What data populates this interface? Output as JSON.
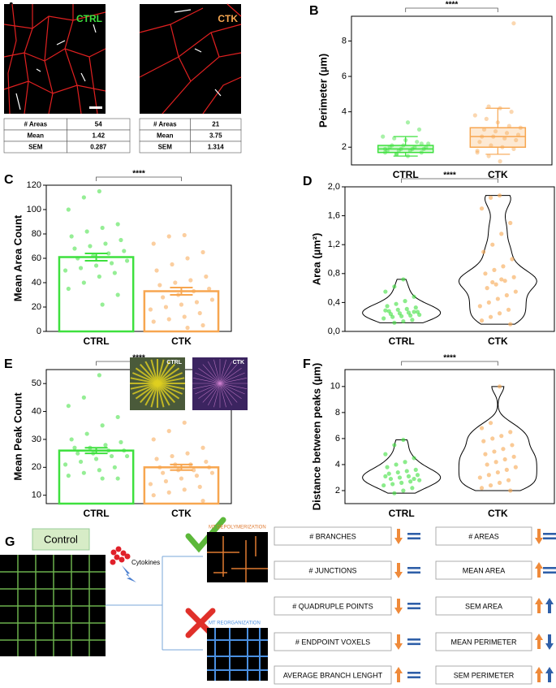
{
  "panel_a": {
    "label": "A",
    "images": [
      {
        "label": "CTRL",
        "table": [
          [
            "# Areas",
            "54"
          ],
          [
            "Mean",
            "1.42"
          ],
          [
            "SEM",
            "0.287"
          ]
        ]
      },
      {
        "label": "CTK",
        "table": [
          [
            "# Areas",
            "21"
          ],
          [
            "Mean",
            "3.75"
          ],
          [
            "SEM",
            "1.314"
          ]
        ]
      }
    ]
  },
  "chart_data": [
    {
      "type": "box",
      "panel": "B",
      "ylabel": "Perimeter (µm)",
      "annotation": "****",
      "categories": [
        "CTRL",
        "CTK"
      ],
      "colors": [
        "#3ee03e",
        "#f7a650"
      ],
      "boxes": [
        {
          "min": 1.5,
          "q1": 1.7,
          "median": 1.9,
          "q3": 2.1,
          "max": 2.6
        },
        {
          "min": 1.6,
          "q1": 2.0,
          "median": 2.6,
          "q3": 3.1,
          "max": 4.2
        }
      ],
      "points": [
        [
          1.5,
          1.6,
          1.7,
          1.7,
          1.8,
          1.8,
          1.8,
          1.9,
          1.9,
          1.9,
          2.0,
          2.0,
          2.0,
          2.1,
          2.1,
          2.2,
          2.3,
          2.4,
          2.5,
          2.6,
          3.0,
          3.4,
          1.6,
          1.9,
          2.2
        ],
        [
          1.2,
          1.5,
          1.7,
          1.9,
          2.0,
          2.1,
          2.3,
          2.4,
          2.5,
          2.6,
          2.6,
          2.7,
          2.8,
          2.9,
          3.0,
          3.1,
          3.2,
          3.4,
          3.6,
          3.8,
          4.0,
          4.2,
          4.3,
          1.8,
          9.0
        ]
      ],
      "ylim": [
        1,
        9.4
      ],
      "yticks": [
        2,
        4,
        6,
        8
      ]
    },
    {
      "type": "bar",
      "panel": "C",
      "ylabel": "Mean Area Count",
      "annotation": "****",
      "categories": [
        "CTRL",
        "CTK"
      ],
      "colors": [
        "#3ee03e",
        "#f7a650"
      ],
      "values": [
        61,
        33
      ],
      "errors": [
        3,
        3
      ],
      "points": [
        [
          115,
          110,
          100,
          88,
          85,
          82,
          78,
          75,
          72,
          70,
          68,
          66,
          64,
          62,
          60,
          58,
          56,
          54,
          52,
          50,
          48,
          45,
          40,
          35,
          30,
          22
        ],
        [
          79,
          78,
          72,
          65,
          60,
          55,
          50,
          45,
          42,
          40,
          38,
          35,
          33,
          30,
          28,
          26,
          24,
          22,
          20,
          18,
          15,
          12,
          10,
          8,
          5,
          3
        ]
      ],
      "ylim": [
        0,
        120
      ],
      "yticks": [
        0,
        20,
        40,
        60,
        80,
        100,
        120
      ]
    },
    {
      "type": "violin",
      "panel": "D",
      "ylabel": "Area (µm²)",
      "annotation": "****",
      "categories": [
        "CTRL",
        "CTK"
      ],
      "colors": [
        "#3ee03e",
        "#f7a650"
      ],
      "points": [
        [
          0.72,
          0.62,
          0.55,
          0.48,
          0.42,
          0.38,
          0.35,
          0.33,
          0.31,
          0.3,
          0.28,
          0.27,
          0.26,
          0.25,
          0.24,
          0.23,
          0.22,
          0.21,
          0.2,
          0.18,
          0.16,
          0.14,
          0.12,
          0.29,
          0.27
        ],
        [
          1.88,
          1.85,
          1.7,
          1.5,
          1.35,
          1.2,
          1.1,
          1.0,
          0.9,
          0.85,
          0.8,
          0.75,
          0.7,
          0.65,
          0.6,
          0.55,
          0.5,
          0.45,
          0.4,
          0.35,
          0.3,
          0.25,
          0.2,
          0.15,
          0.1,
          0.72,
          0.68
        ]
      ],
      "ylim": [
        0,
        2.0
      ],
      "yticks": [
        {
          "value": 0,
          "label": "0,0"
        },
        {
          "value": 0.4,
          "label": "0,4"
        },
        {
          "value": 0.8,
          "label": "0,8"
        },
        {
          "value": 1.2,
          "label": "1,2"
        },
        {
          "value": 1.6,
          "label": "1,6"
        },
        {
          "value": 2.0,
          "label": "2,0"
        }
      ]
    },
    {
      "type": "bar",
      "panel": "E",
      "ylabel": "Mean Peak Count",
      "annotation": "****",
      "insets": [
        "CTRL",
        "CTK"
      ],
      "categories": [
        "CTRL",
        "CTK"
      ],
      "colors": [
        "#3ee03e",
        "#f7a650"
      ],
      "values": [
        26,
        20
      ],
      "errors": [
        1,
        1
      ],
      "points": [
        [
          53,
          45,
          42,
          38,
          35,
          32,
          30,
          29,
          28,
          27,
          27,
          26,
          26,
          25,
          25,
          24,
          24,
          23,
          22,
          21,
          20,
          19,
          18,
          17,
          16,
          16
        ],
        [
          36,
          33,
          30,
          27,
          25,
          24,
          23,
          22,
          21,
          21,
          20,
          20,
          19,
          19,
          18,
          18,
          17,
          16,
          15,
          14,
          13,
          12,
          11,
          10,
          8
        ]
      ],
      "ylim": [
        7,
        55
      ],
      "yticks": [
        10,
        20,
        30,
        40,
        50
      ]
    },
    {
      "type": "violin",
      "panel": "F",
      "ylabel": "Distance between peaks (µm)",
      "annotation": "****",
      "categories": [
        "CTRL",
        "CTK"
      ],
      "colors": [
        "#3ee03e",
        "#f7a650"
      ],
      "points": [
        [
          5.9,
          5.5,
          4.8,
          4.5,
          4.2,
          4.0,
          3.8,
          3.6,
          3.5,
          3.4,
          3.3,
          3.2,
          3.1,
          3.0,
          2.9,
          2.8,
          2.7,
          2.6,
          2.5,
          2.4,
          2.2,
          2.0,
          1.8,
          3.1,
          2.9
        ],
        [
          10.0,
          7.2,
          6.8,
          6.5,
          6.2,
          6.0,
          5.8,
          5.5,
          5.2,
          5.0,
          4.8,
          4.6,
          4.4,
          4.2,
          4.0,
          3.8,
          3.6,
          3.4,
          3.2,
          3.0,
          2.8,
          2.6,
          2.4,
          2.2,
          2.0
        ]
      ],
      "ylim": [
        1,
        11.3
      ],
      "yticks": [
        2,
        4,
        6,
        8,
        10
      ]
    }
  ],
  "panel_g": {
    "label": "G",
    "control": "Control",
    "cytokines": "Cytokines",
    "outcomes": [
      "MT DEPOLYMERIZATION",
      "MT REORGANIZATION"
    ],
    "metrics": [
      {
        "label": "# BRANCHES",
        "depolymerization": "down",
        "reorganization": "equal"
      },
      {
        "label": "# JUNCTIONS",
        "depolymerization": "down",
        "reorganization": "equal"
      },
      {
        "label": "# QUADRUPLE POINTS",
        "depolymerization": "down",
        "reorganization": "equal"
      },
      {
        "label": "# ENDPOINT VOXELS",
        "depolymerization": "down",
        "reorganization": "equal"
      },
      {
        "label": "AVERAGE BRANCH LENGHT",
        "depolymerization": "up",
        "reorganization": "equal"
      },
      {
        "label": "# AREAS",
        "depolymerization": "down",
        "reorganization": "equal"
      },
      {
        "label": "MEAN AREA",
        "depolymerization": "up",
        "reorganization": "equal"
      },
      {
        "label": "SEM AREA",
        "depolymerization": "up",
        "reorganization": "up"
      },
      {
        "label": "MEAN PERIMETER",
        "depolymerization": "up",
        "reorganization": "down"
      },
      {
        "label": "SEM PERIMETER",
        "depolymerization": "up",
        "reorganization": "up"
      }
    ]
  }
}
